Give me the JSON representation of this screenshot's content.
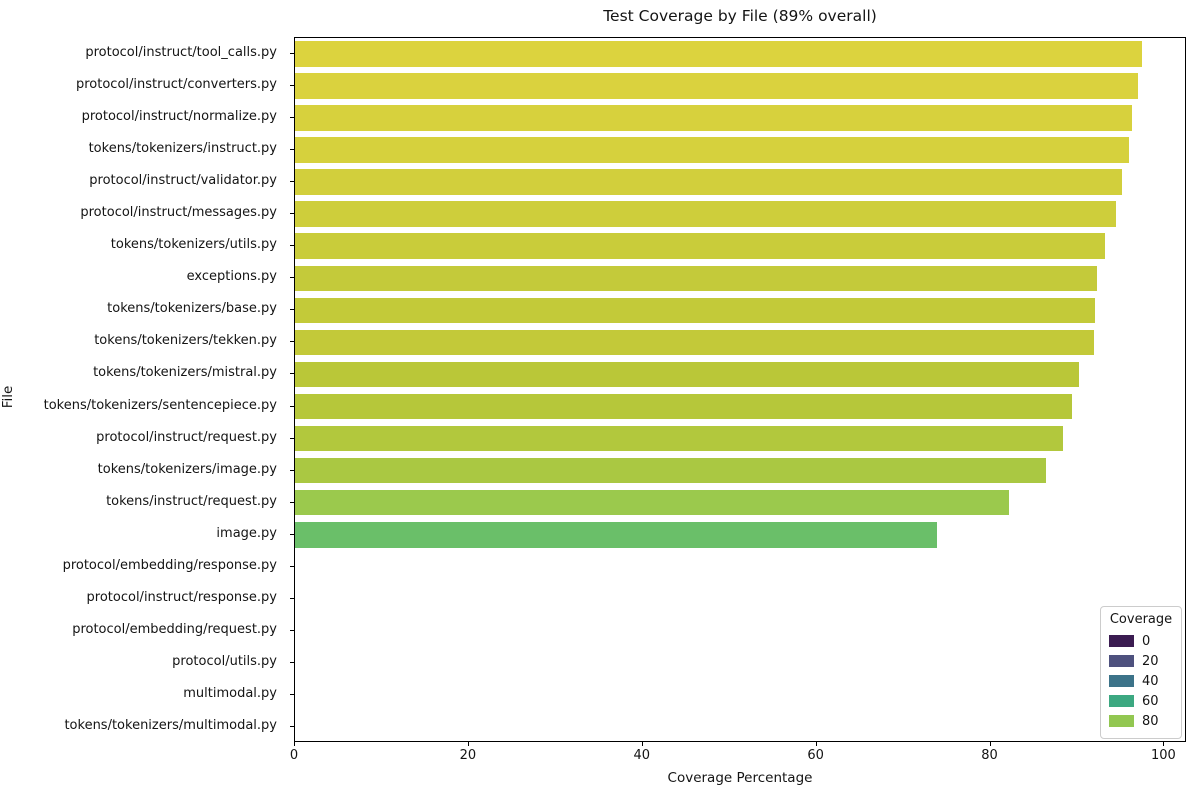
{
  "chart_data": {
    "type": "bar",
    "orientation": "horizontal",
    "title": "Test Coverage by File (89% overall)",
    "xlabel": "Coverage Percentage",
    "ylabel": "File",
    "xlim": [
      0,
      102.6
    ],
    "x_ticks": [
      0,
      20,
      40,
      60,
      80,
      100
    ],
    "grid": false,
    "background_color": "#ffffff",
    "legend": {
      "title": "Coverage",
      "position": "lower right",
      "entries": [
        {
          "label": "0",
          "color": "#3b1c51"
        },
        {
          "label": "20",
          "color": "#4e517e"
        },
        {
          "label": "40",
          "color": "#3c7389"
        },
        {
          "label": "60",
          "color": "#3ca881"
        },
        {
          "label": "80",
          "color": "#92c751"
        }
      ]
    },
    "bars": [
      {
        "file": "protocol/instruct/tool_calls.py",
        "value": 97.7,
        "color": "#dcd33e"
      },
      {
        "file": "protocol/instruct/converters.py",
        "value": 97.2,
        "color": "#dad23e"
      },
      {
        "file": "protocol/instruct/normalize.py",
        "value": 96.5,
        "color": "#d7d13d"
      },
      {
        "file": "tokens/tokenizers/instruct.py",
        "value": 96.2,
        "color": "#d6d13d"
      },
      {
        "file": "protocol/instruct/validator.py",
        "value": 95.3,
        "color": "#d2cf3c"
      },
      {
        "file": "protocol/instruct/messages.py",
        "value": 94.6,
        "color": "#cece3b"
      },
      {
        "file": "tokens/tokenizers/utils.py",
        "value": 93.4,
        "color": "#c9cc3a"
      },
      {
        "file": "exceptions.py",
        "value": 92.4,
        "color": "#c4ca3a"
      },
      {
        "file": "tokens/tokenizers/base.py",
        "value": 92.2,
        "color": "#c3ca39"
      },
      {
        "file": "tokens/tokenizers/tekken.py",
        "value": 92.1,
        "color": "#c3c939"
      },
      {
        "file": "tokens/tokenizers/mistral.py",
        "value": 90.4,
        "color": "#bac738"
      },
      {
        "file": "tokens/tokenizers/sentencepiece.py",
        "value": 89.6,
        "color": "#b6c73a"
      },
      {
        "file": "protocol/instruct/request.py",
        "value": 88.5,
        "color": "#b2c83d"
      },
      {
        "file": "tokens/tokenizers/image.py",
        "value": 86.6,
        "color": "#aac842"
      },
      {
        "file": "tokens/instruct/request.py",
        "value": 82.3,
        "color": "#9bc94d"
      },
      {
        "file": "image.py",
        "value": 74.0,
        "color": "#6abf69"
      },
      {
        "file": "protocol/embedding/response.py",
        "value": 0,
        "color": "#3b1c51"
      },
      {
        "file": "protocol/instruct/response.py",
        "value": 0,
        "color": "#3b1c51"
      },
      {
        "file": "protocol/embedding/request.py",
        "value": 0,
        "color": "#3b1c51"
      },
      {
        "file": "protocol/utils.py",
        "value": 0,
        "color": "#3b1c51"
      },
      {
        "file": "multimodal.py",
        "value": 0,
        "color": "#3b1c51"
      },
      {
        "file": "tokens/tokenizers/multimodal.py",
        "value": 0,
        "color": "#3b1c51"
      }
    ]
  }
}
